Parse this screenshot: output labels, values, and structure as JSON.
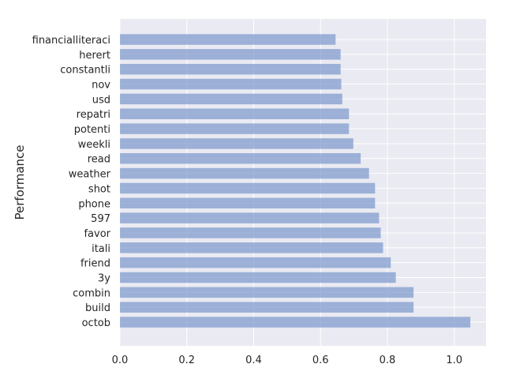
{
  "chart_data": {
    "type": "bar",
    "orientation": "horizontal",
    "title": "",
    "xlabel": "",
    "ylabel": "Performance",
    "xlim": [
      0.0,
      1.095
    ],
    "xticks": [
      "0.0",
      "0.2",
      "0.4",
      "0.6",
      "0.8",
      "1.0"
    ],
    "grid": true,
    "colors": {
      "background": "#eaeaf2",
      "grid": "#ffffff",
      "bar": "#7b97cc"
    },
    "categories": [
      "financialliteraci",
      "herert",
      "constantli",
      "nov",
      "usd",
      "repatri",
      "potenti",
      "weekli",
      "read",
      "weather",
      "shot",
      "phone",
      "597",
      "favor",
      "itali",
      "friend",
      "3y",
      "combin",
      "build",
      "octob"
    ],
    "values": [
      0.645,
      0.66,
      0.66,
      0.662,
      0.665,
      0.685,
      0.685,
      0.698,
      0.72,
      0.745,
      0.763,
      0.763,
      0.775,
      0.78,
      0.787,
      0.81,
      0.825,
      0.878,
      0.878,
      1.048
    ]
  }
}
